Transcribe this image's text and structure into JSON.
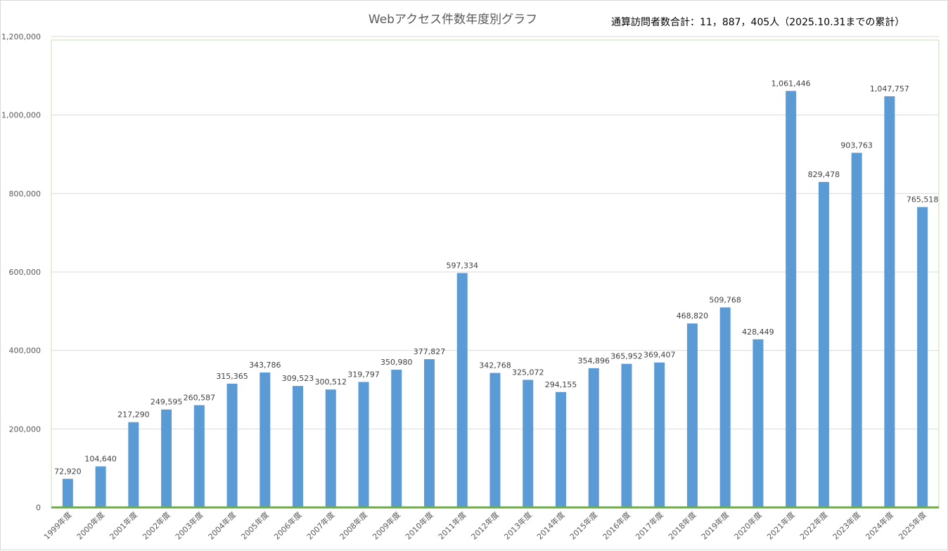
{
  "chart_data": {
    "type": "bar",
    "title": "Webアクセス件数年度別グラフ",
    "annotation": "通算訪問者数合計：11，887，405人（2025.10.31までの累計）",
    "categories": [
      "1999年度",
      "2000年度",
      "2001年度",
      "2002年度",
      "2003年度",
      "2004年度",
      "2005年度",
      "2006年度",
      "2007年度",
      "2008年度",
      "2009年度",
      "2010年度",
      "2011年度",
      "2012年度",
      "2013年度",
      "2014年度",
      "2015年度",
      "2016年度",
      "2017年度",
      "2018年度",
      "2019年度",
      "2020年度",
      "2021年度",
      "2022年度",
      "2023年度",
      "2024年度",
      "2025年度"
    ],
    "values": [
      72920,
      104640,
      217290,
      249595,
      260587,
      315365,
      343786,
      309523,
      300512,
      319797,
      350980,
      377827,
      597334,
      342768,
      325072,
      294155,
      354896,
      365952,
      369407,
      468820,
      509768,
      428449,
      1061446,
      829478,
      903763,
      1047757,
      765518
    ],
    "data_labels": [
      "72,920",
      "104,640",
      "217,290",
      "249,595",
      "260,587",
      "315,365",
      "343,786",
      "309,523",
      "300,512",
      "319,797",
      "350,980",
      "377,827",
      "597,334",
      "342,768",
      "325,072",
      "294,155",
      "354,896",
      "365,952",
      "369,407",
      "468,820",
      "509,768",
      "428,449",
      "1,061,446",
      "829,478",
      "903,763",
      "1,047,757",
      "765,518"
    ],
    "ylim": [
      0,
      1200000
    ],
    "yticks": [
      0,
      200000,
      400000,
      600000,
      800000,
      1000000,
      1200000
    ],
    "ytick_labels": [
      "0",
      "200,000",
      "400,000",
      "600,000",
      "800,000",
      "1,000,000",
      "1,200,000"
    ],
    "grid": true,
    "bar_color": "#5b9bd5",
    "plot_border_color": "#70ad47"
  }
}
